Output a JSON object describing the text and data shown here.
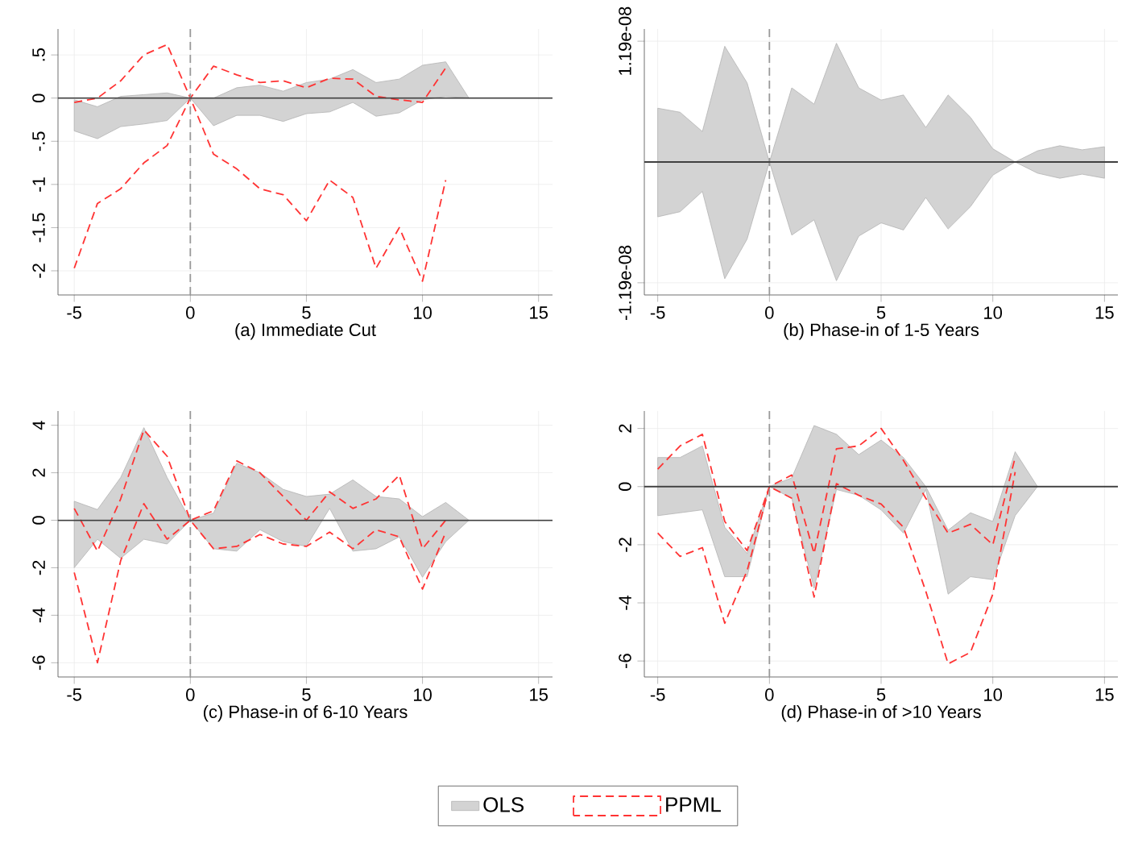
{
  "chart_data": [
    {
      "type": "line",
      "xlabel": "(a) Immediate Cut",
      "xlim": [
        -5.7,
        15.6
      ],
      "ylim": [
        -2.28,
        0.8
      ],
      "xticks": [
        -5,
        0,
        5,
        10,
        15
      ],
      "yticks": [
        {
          "value": 0.5,
          "label": ".5"
        },
        0,
        {
          "value": -0.5,
          "label": "-.5"
        },
        -1,
        {
          "value": -1.5,
          "label": "-1.5"
        },
        -2
      ],
      "grid": true,
      "ref_lines": [
        {
          "axis": "x",
          "value": 0,
          "color": "#999999",
          "line_style": "dashed"
        },
        {
          "axis": "y",
          "value": 0,
          "color": "#404040",
          "line_style": "solid"
        }
      ],
      "series": [
        {
          "type": "area",
          "color": "#d3d3d3",
          "x": [
            -5,
            -4,
            -3,
            -2,
            -1,
            0,
            1,
            2,
            3,
            4,
            5,
            6,
            7,
            8,
            9,
            10,
            11,
            12
          ],
          "values": [
            null,
            null,
            null,
            null,
            null,
            null,
            null,
            null,
            null,
            null,
            null,
            null,
            null,
            null,
            null,
            null,
            null,
            null
          ],
          "upper": [
            -0.02,
            -0.1,
            0.02,
            0.04,
            0.06,
            0,
            0,
            0.12,
            0.15,
            0.08,
            0.18,
            0.22,
            0.33,
            0.18,
            0.22,
            0.38,
            0.42,
            0
          ],
          "lower": [
            -0.38,
            -0.47,
            -0.33,
            -0.3,
            -0.26,
            0,
            -0.32,
            -0.2,
            -0.2,
            -0.27,
            -0.18,
            -0.16,
            -0.05,
            -0.21,
            -0.17,
            -0.02,
            0.02,
            0
          ]
        },
        {
          "color": "#ff3333",
          "line_style": "dashed",
          "x": [
            -5,
            -4,
            -3,
            -2,
            -1,
            0,
            1,
            2,
            3,
            4,
            5,
            6,
            7,
            8,
            9,
            10,
            11
          ],
          "values": [
            -0.05,
            0,
            0.2,
            0.5,
            0.62,
            0,
            0.37,
            0.27,
            0.18,
            0.2,
            0.12,
            0.23,
            0.22,
            0.02,
            -0.02,
            -0.05,
            0.35
          ]
        },
        {
          "color": "#ff3333",
          "line_style": "dashed",
          "x": [
            -5,
            -4,
            -3,
            -2,
            -1,
            0,
            1,
            2,
            3,
            4,
            5,
            6,
            7,
            8,
            9,
            10,
            11
          ],
          "values": [
            -1.97,
            -1.22,
            -1.05,
            -0.75,
            -0.55,
            0,
            -0.65,
            -0.82,
            -1.05,
            -1.12,
            -1.42,
            -0.95,
            -1.15,
            -1.97,
            -1.5,
            -2.12,
            -0.95
          ]
        }
      ]
    },
    {
      "type": "line",
      "xlabel": "(b) Phase-in of 1-5 Years",
      "xlim": [
        -5.6,
        15.6
      ],
      "ylim": [
        -1.31e-08,
        1.31e-08
      ],
      "xticks": [
        -5,
        0,
        5,
        10,
        15
      ],
      "yticks": [
        {
          "value": -1.19e-08,
          "label": "-1.19e-08"
        },
        {
          "value": 1.19e-08,
          "label": "1.19e-08"
        }
      ],
      "grid": true,
      "ref_lines": [
        {
          "axis": "x",
          "value": 0,
          "color": "#999999",
          "line_style": "dashed"
        },
        {
          "axis": "y",
          "value": 0,
          "color": "#404040",
          "line_style": "solid"
        }
      ],
      "series": [
        {
          "type": "area",
          "color": "#d3d3d3",
          "x": [
            -5,
            -4,
            -3,
            -2,
            -1,
            0,
            1,
            2,
            3,
            4,
            5,
            6,
            7,
            8,
            9,
            10,
            11,
            12,
            13,
            14,
            15
          ],
          "values": [
            null,
            null,
            null,
            null,
            null,
            null,
            null,
            null,
            null,
            null,
            null,
            null,
            null,
            null,
            null,
            null,
            null,
            null,
            null,
            null,
            null
          ],
          "upper": [
            5.3e-09,
            4.9e-09,
            3e-09,
            1.14e-08,
            7.8e-09,
            0,
            7.3e-09,
            5.7e-09,
            1.17e-08,
            7.3e-09,
            6.1e-09,
            6.6e-09,
            3.4e-09,
            6.6e-09,
            4.4e-09,
            1.3e-09,
            0,
            1.1e-09,
            1.6e-09,
            1.2e-09,
            1.5e-09
          ],
          "lower": [
            -5.4e-09,
            -4.9e-09,
            -2.9e-09,
            -1.15e-08,
            -7.6e-09,
            0,
            -7.2e-09,
            -5.7e-09,
            -1.17e-08,
            -7.3e-09,
            -6e-09,
            -6.7e-09,
            -3.5e-09,
            -6.6e-09,
            -4.4e-09,
            -1.3e-09,
            0,
            -1.1e-09,
            -1.6e-09,
            -1.2e-09,
            -1.6e-09
          ]
        }
      ]
    },
    {
      "type": "line",
      "xlabel": "(c) Phase-in of 6-10 Years",
      "xlim": [
        -5.7,
        15.6
      ],
      "ylim": [
        -6.6,
        4.6
      ],
      "xticks": [
        -5,
        0,
        5,
        10,
        15
      ],
      "yticks": [
        -6,
        -4,
        -2,
        0,
        2,
        4
      ],
      "grid": true,
      "legend": "bottom",
      "ref_lines": [
        {
          "axis": "x",
          "value": 0,
          "color": "#999999",
          "line_style": "dashed"
        },
        {
          "axis": "y",
          "value": 0,
          "color": "#404040",
          "line_style": "solid"
        }
      ],
      "series": [
        {
          "name": "OLS",
          "type": "area",
          "color": "#d3d3d3",
          "x": [
            -5,
            -4,
            -3,
            -2,
            -1,
            0,
            1,
            2,
            3,
            4,
            5,
            6,
            7,
            8,
            9,
            10,
            11,
            12
          ],
          "values": [
            null,
            null,
            null,
            null,
            null,
            null,
            null,
            null,
            null,
            null,
            null,
            null,
            null,
            null,
            null,
            null,
            null,
            null
          ],
          "upper": [
            0.8,
            0.45,
            1.8,
            3.9,
            1.8,
            0,
            0.3,
            2.4,
            2.0,
            1.3,
            1.0,
            1.1,
            1.7,
            1.0,
            0.9,
            0.15,
            0.75,
            0
          ],
          "lower": [
            -2.0,
            -0.8,
            -1.6,
            -0.8,
            -1.0,
            0,
            -1.2,
            -1.3,
            -0.4,
            -0.9,
            -1.1,
            0.5,
            -1.3,
            -1.2,
            -0.7,
            -2.4,
            -0.9,
            0
          ]
        },
        {
          "name": "PPML",
          "color": "#ff3333",
          "line_style": "dashed",
          "x": [
            -5,
            -4,
            -3,
            -2,
            -1,
            0,
            1,
            2,
            3,
            4,
            5,
            6,
            7,
            8,
            9,
            10,
            11
          ],
          "values": [
            0.5,
            -1.3,
            0.9,
            3.8,
            2.7,
            0,
            0.4,
            2.5,
            2.0,
            1.0,
            0,
            1.2,
            0.5,
            0.9,
            1.9,
            -1.2,
            0
          ]
        },
        {
          "color": "#ff3333",
          "line_style": "dashed",
          "x": [
            -5,
            -4,
            -3,
            -2,
            -1,
            0,
            1,
            2,
            3,
            4,
            5,
            6,
            7,
            8,
            9,
            10,
            11
          ],
          "values": [
            -2.2,
            -6.0,
            -1.7,
            0.7,
            -0.8,
            0,
            -1.2,
            -1.1,
            -0.6,
            -1.0,
            -1.1,
            -0.5,
            -1.2,
            -0.4,
            -0.7,
            -2.9,
            -0.5
          ]
        }
      ]
    },
    {
      "type": "line",
      "xlabel": "(d) Phase-in of >10 Years",
      "xlim": [
        -5.6,
        15.6
      ],
      "ylim": [
        -6.55,
        2.6
      ],
      "xticks": [
        -5,
        0,
        5,
        10,
        15
      ],
      "yticks": [
        -6,
        -4,
        -2,
        0,
        2
      ],
      "grid": true,
      "ref_lines": [
        {
          "axis": "x",
          "value": 0,
          "color": "#999999",
          "line_style": "dashed"
        },
        {
          "axis": "y",
          "value": 0,
          "color": "#404040",
          "line_style": "solid"
        }
      ],
      "series": [
        {
          "type": "area",
          "color": "#d3d3d3",
          "x": [
            -5,
            -4,
            -3,
            -2,
            -1,
            0,
            1,
            2,
            3,
            4,
            5,
            6,
            7,
            8,
            9,
            10,
            11,
            12
          ],
          "values": [
            null,
            null,
            null,
            null,
            null,
            null,
            null,
            null,
            null,
            null,
            null,
            null,
            null,
            null,
            null,
            null,
            null,
            null
          ],
          "upper": [
            1.0,
            1.0,
            1.4,
            -1.4,
            -2.3,
            0,
            0.3,
            2.1,
            1.8,
            1.1,
            1.6,
            1.0,
            0,
            -1.5,
            -0.9,
            -1.2,
            1.2,
            0
          ],
          "lower": [
            -1.0,
            -0.9,
            -0.8,
            -3.1,
            -3.1,
            0,
            -0.4,
            -3.5,
            -0.1,
            -0.3,
            -0.8,
            -1.6,
            -0.1,
            -3.7,
            -3.1,
            -3.2,
            -1.0,
            0
          ]
        },
        {
          "color": "#ff3333",
          "line_style": "dashed",
          "x": [
            -5,
            -4,
            -3,
            -2,
            -1,
            0,
            1,
            2,
            3,
            4,
            5,
            6,
            7,
            8,
            9,
            10,
            11
          ],
          "values": [
            0.6,
            1.4,
            1.8,
            -1.2,
            -2.2,
            0,
            0.4,
            -2.3,
            1.3,
            1.4,
            2.0,
            0.9,
            -0.4,
            -1.6,
            -1.3,
            -2.0,
            1.0
          ]
        },
        {
          "color": "#ff3333",
          "line_style": "dashed",
          "x": [
            -5,
            -4,
            -3,
            -2,
            -1,
            0,
            1,
            2,
            3,
            4,
            5,
            6,
            7,
            8,
            9,
            10,
            11
          ],
          "values": [
            -1.6,
            -2.4,
            -2.1,
            -4.7,
            -2.9,
            0,
            -0.4,
            -3.8,
            0.1,
            -0.3,
            -0.6,
            -1.4,
            -3.6,
            -6.1,
            -5.7,
            -3.7,
            0.5
          ]
        }
      ]
    }
  ]
}
